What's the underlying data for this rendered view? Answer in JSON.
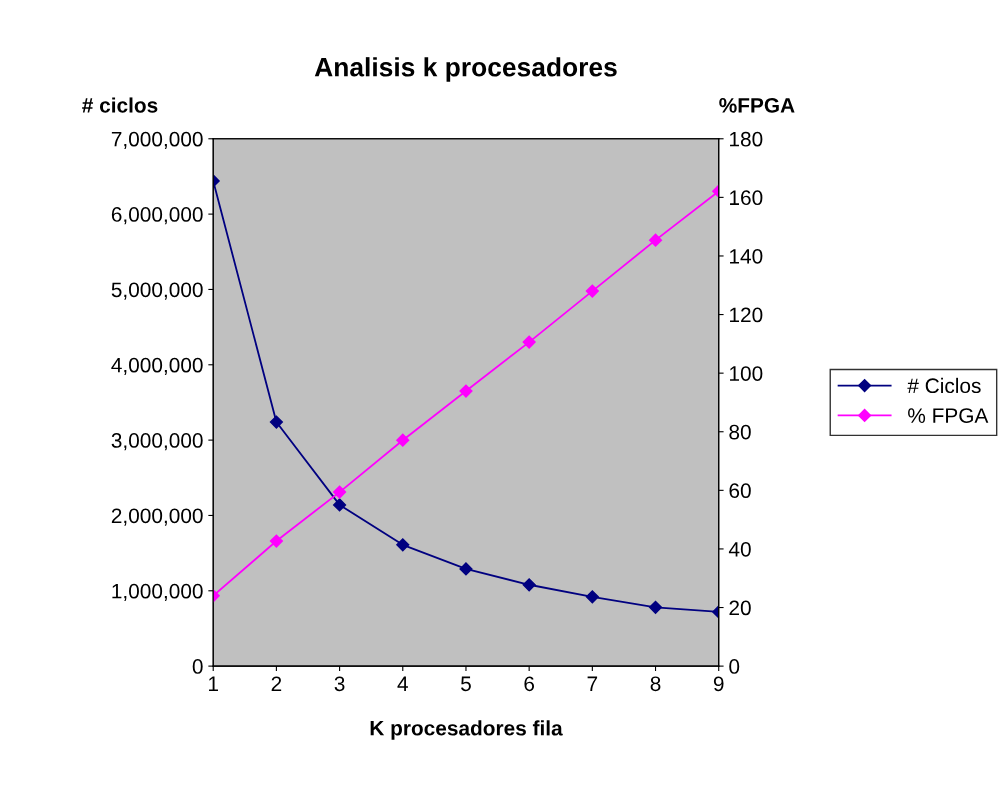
{
  "chart_data": {
    "type": "line",
    "title": "Analisis k procesadores",
    "xlabel": "K procesadores fila",
    "ylabel": "# ciclos",
    "y2label": "%FPGA",
    "x": [
      1,
      2,
      3,
      4,
      5,
      6,
      7,
      8,
      9
    ],
    "series": [
      {
        "name": "# Ciclos",
        "color": "#000080",
        "values": [
          6440000,
          3240000,
          2140000,
          1610000,
          1290000,
          1080000,
          920000,
          780000,
          720000
        ]
      },
      {
        "name": "% FPGA",
        "color": "#ff00ff",
        "axis": "y2",
        "values": [
          24,
          42.7,
          59.4,
          77.1,
          93.9,
          110.6,
          128,
          145.4,
          162.1
        ]
      }
    ],
    "xlim": [
      1,
      9
    ],
    "xticks": [
      1,
      2,
      3,
      4,
      5,
      6,
      7,
      8,
      9
    ],
    "ylim": [
      0,
      7000000
    ],
    "yticks": [
      0,
      {
        "value": 1000000,
        "label": "1,000,000"
      },
      {
        "value": 2000000,
        "label": "2,000,000"
      },
      {
        "value": 3000000,
        "label": "3,000,000"
      },
      {
        "value": 4000000,
        "label": "4,000,000"
      },
      {
        "value": 5000000,
        "label": "5,000,000"
      },
      {
        "value": 6000000,
        "label": "6,000,000"
      },
      {
        "value": 7000000,
        "label": "7,000,000"
      }
    ],
    "y2lim": [
      0,
      180
    ],
    "y2ticks": [
      0,
      20,
      40,
      60,
      80,
      100,
      120,
      140,
      160,
      180
    ],
    "grid": false,
    "legend": "right",
    "marker": "diamond",
    "line_style": "solid"
  }
}
